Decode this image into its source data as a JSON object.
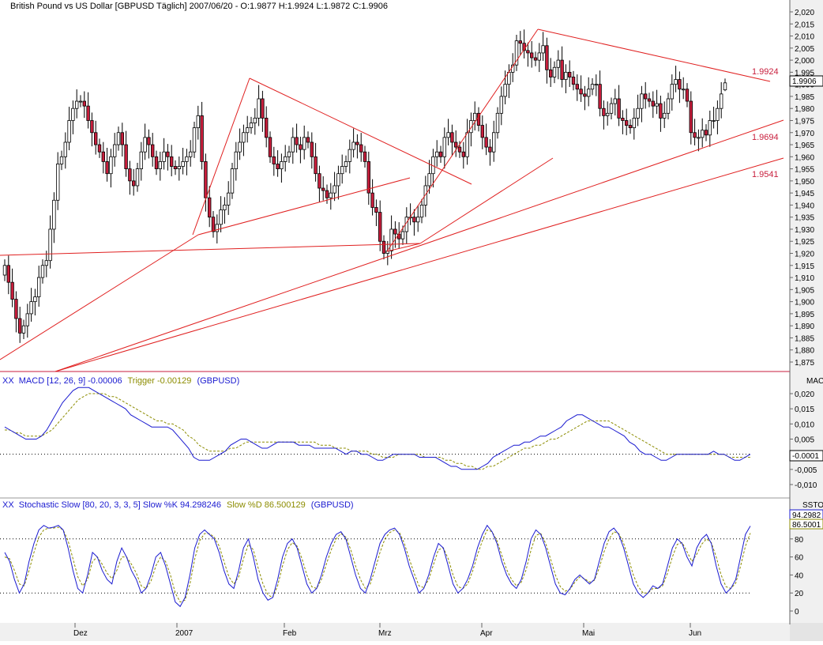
{
  "colors": {
    "background": "#ffffff",
    "axis_bg": "#f0f0f0",
    "bull_candle": "#ffffff",
    "bear_candle": "#c81e3c",
    "candle_outline": "#000000",
    "trendline": "#e02020",
    "macd": "#1a1ad0",
    "trigger": "#8c8c00",
    "stoch_k": "#1a1ad0",
    "stoch_d": "#8c8c00",
    "highlight": "#e8e8e8"
  },
  "panels": {
    "price": {
      "title": "British Pound vs US Dollar [GBPUSD  Täglich] 2007/06/20 - O:1.9877 H:1.9924 L:1.9872 C:1.9906",
      "last_price": "1.9906",
      "ticks": [
        "2,020",
        "2,015",
        "2,010",
        "2,005",
        "2,000",
        "1,995",
        "1,990",
        "1,985",
        "1,980",
        "1,975",
        "1,970",
        "1,965",
        "1,960",
        "1,955",
        "1,950",
        "1,945",
        "1,940",
        "1,935",
        "1,930",
        "1,925",
        "1,920",
        "1,915",
        "1,910",
        "1,905",
        "1,900",
        "1,895",
        "1,890",
        "1,885",
        "1,880",
        "1,875"
      ],
      "annotations": [
        "1.9924",
        "1.9694",
        "1.9541"
      ]
    },
    "macd": {
      "icon": "XX",
      "title_prefix": "MACD [12, 26, 9] -0.00006",
      "title_trigger": "Trigger -0.00129",
      "title_suffix": "(GBPUSD)",
      "corner_label": "MAC",
      "last_value": "-0.0001",
      "ticks": [
        "0,020",
        "0,015",
        "0,010",
        "0,005",
        "0",
        "-0,005",
        "-0,010"
      ]
    },
    "stochastic": {
      "icon": "XX",
      "title_prefix": "Stochastic Slow [80, 20, 3, 3, 5] Slow %K 94.298246",
      "title_slowd": "Slow %D 86.500129",
      "title_suffix": "(GBPUSD)",
      "corner_label": "SSTO",
      "value_k": "94.2982",
      "value_d": "86.5001",
      "ticks": [
        "100",
        "80",
        "60",
        "40",
        "20",
        "0"
      ]
    }
  },
  "x_axis": {
    "labels": [
      "Dez",
      "2007",
      "Feb",
      "Mrz",
      "Apr",
      "Mai",
      "Jun"
    ]
  },
  "chart_data": [
    {
      "type": "candlestick",
      "title": "British Pound vs US Dollar [GBPUSD  Täglich]",
      "ylim": [
        1.872,
        2.023
      ],
      "last_bar": {
        "date": "2007/06/20",
        "open": 1.9877,
        "high": 1.9924,
        "low": 1.9872,
        "close": 1.9906
      },
      "close": [
        1.915,
        1.908,
        1.901,
        1.893,
        1.887,
        1.89,
        1.895,
        1.9,
        1.902,
        1.91,
        1.915,
        1.917,
        1.93,
        1.942,
        1.957,
        1.96,
        1.966,
        1.975,
        1.98,
        1.983,
        1.983,
        1.981,
        1.975,
        1.97,
        1.965,
        1.962,
        1.958,
        1.953,
        1.96,
        1.965,
        1.97,
        1.965,
        1.955,
        1.95,
        1.948,
        1.955,
        1.962,
        1.968,
        1.965,
        1.96,
        1.955,
        1.958,
        1.962,
        1.96,
        1.956,
        1.955,
        1.956,
        1.958,
        1.96,
        1.962,
        1.972,
        1.977,
        1.958,
        1.943,
        1.935,
        1.929,
        1.932,
        1.938,
        1.94,
        1.945,
        1.955,
        1.962,
        1.966,
        1.97,
        1.972,
        1.974,
        1.976,
        1.984,
        1.976,
        1.968,
        1.96,
        1.957,
        1.955,
        1.958,
        1.96,
        1.962,
        1.968,
        1.965,
        1.963,
        1.968,
        1.966,
        1.96,
        1.953,
        1.947,
        1.946,
        1.943,
        1.945,
        1.948,
        1.953,
        1.956,
        1.958,
        1.963,
        1.966,
        1.965,
        1.962,
        1.958,
        1.945,
        1.939,
        1.937,
        1.925,
        1.92,
        1.921,
        1.93,
        1.928,
        1.926,
        1.929,
        1.935,
        1.935,
        1.933,
        1.935,
        1.94,
        1.948,
        1.953,
        1.96,
        1.962,
        1.96,
        1.968,
        1.97,
        1.966,
        1.964,
        1.962,
        1.96,
        1.97,
        1.975,
        1.978,
        1.973,
        1.968,
        1.964,
        1.962,
        1.97,
        1.978,
        1.985,
        1.99,
        1.995,
        1.998,
        2.008,
        2.007,
        2.004,
        2.003,
        2.001,
        2.0,
        2.003,
        2.006,
        1.996,
        1.993,
        1.997,
        2.0,
        1.992,
        1.995,
        1.993,
        1.99,
        1.988,
        1.986,
        1.985,
        1.988,
        1.99,
        1.99,
        1.98,
        1.977,
        1.978,
        1.982,
        1.984,
        1.976,
        1.975,
        1.973,
        1.972,
        1.976,
        1.98,
        1.986,
        1.984,
        1.983,
        1.981,
        1.982,
        1.976,
        1.978,
        1.984,
        1.99,
        1.992,
        1.988,
        1.988,
        1.983,
        1.97,
        1.968,
        1.968,
        1.971,
        1.969,
        1.975,
        1.975,
        1.98,
        1.986,
        1.9906
      ]
    },
    {
      "type": "line",
      "title": "MACD [12, 26, 9]",
      "ylim": [
        -0.013,
        0.024
      ],
      "series": [
        {
          "name": "MACD",
          "values": [
            0.009,
            0.008,
            0.007,
            0.006,
            0.005,
            0.005,
            0.005,
            0.006,
            0.008,
            0.011,
            0.014,
            0.017,
            0.019,
            0.021,
            0.022,
            0.022,
            0.022,
            0.021,
            0.02,
            0.019,
            0.018,
            0.017,
            0.016,
            0.015,
            0.013,
            0.012,
            0.011,
            0.01,
            0.009,
            0.009,
            0.009,
            0.009,
            0.008,
            0.006,
            0.004,
            0.002,
            -0.001,
            -0.002,
            -0.002,
            -0.002,
            -0.001,
            0.0,
            0.001,
            0.003,
            0.004,
            0.005,
            0.005,
            0.004,
            0.003,
            0.002,
            0.002,
            0.003,
            0.004,
            0.004,
            0.004,
            0.004,
            0.003,
            0.003,
            0.003,
            0.002,
            0.002,
            0.002,
            0.002,
            0.002,
            0.001,
            0.0,
            0.001,
            0.001,
            0.0,
            0.0,
            -0.001,
            -0.002,
            -0.002,
            -0.001,
            0.0,
            0.0,
            0.0,
            0.0,
            0.0,
            -0.001,
            -0.001,
            -0.001,
            -0.001,
            -0.002,
            -0.003,
            -0.004,
            -0.004,
            -0.005,
            -0.005,
            -0.005,
            -0.005,
            -0.004,
            -0.003,
            -0.001,
            0.0,
            0.001,
            0.002,
            0.003,
            0.003,
            0.004,
            0.004,
            0.005,
            0.006,
            0.006,
            0.007,
            0.008,
            0.009,
            0.011,
            0.012,
            0.013,
            0.013,
            0.012,
            0.011,
            0.01,
            0.009,
            0.009,
            0.008,
            0.007,
            0.006,
            0.004,
            0.003,
            0.001,
            0.0,
            0.0,
            -0.001,
            -0.002,
            -0.002,
            -0.001,
            0.0,
            0.0,
            0.0,
            0.0,
            0.0,
            0.0,
            0.0,
            0.001,
            0.0,
            0.0,
            -0.001,
            -0.002,
            -0.002,
            -0.001,
            0.0
          ]
        },
        {
          "name": "Trigger",
          "values": [
            0.008,
            0.008,
            0.007,
            0.007,
            0.006,
            0.006,
            0.006,
            0.006,
            0.007,
            0.008,
            0.01,
            0.012,
            0.014,
            0.016,
            0.018,
            0.019,
            0.02,
            0.02,
            0.02,
            0.02,
            0.019,
            0.019,
            0.018,
            0.017,
            0.016,
            0.015,
            0.014,
            0.013,
            0.012,
            0.011,
            0.011,
            0.01,
            0.01,
            0.009,
            0.008,
            0.006,
            0.005,
            0.003,
            0.002,
            0.001,
            0.001,
            0.001,
            0.001,
            0.002,
            0.002,
            0.003,
            0.004,
            0.004,
            0.004,
            0.004,
            0.004,
            0.004,
            0.004,
            0.004,
            0.004,
            0.004,
            0.004,
            0.004,
            0.004,
            0.004,
            0.003,
            0.003,
            0.003,
            0.002,
            0.002,
            0.002,
            0.001,
            0.001,
            0.001,
            0.001,
            0.0,
            0.0,
            -0.001,
            -0.001,
            -0.001,
            0.0,
            0.0,
            0.0,
            0.0,
            0.0,
            -0.001,
            -0.001,
            -0.001,
            -0.001,
            -0.002,
            -0.002,
            -0.003,
            -0.003,
            -0.004,
            -0.004,
            -0.005,
            -0.005,
            -0.004,
            -0.004,
            -0.003,
            -0.002,
            -0.001,
            0.0,
            0.001,
            0.002,
            0.002,
            0.003,
            0.003,
            0.004,
            0.005,
            0.005,
            0.006,
            0.007,
            0.008,
            0.009,
            0.01,
            0.011,
            0.011,
            0.011,
            0.011,
            0.011,
            0.01,
            0.009,
            0.008,
            0.007,
            0.006,
            0.005,
            0.004,
            0.003,
            0.002,
            0.001,
            0.0,
            0.0,
            0.0,
            0.0,
            0.0,
            0.0,
            0.0,
            0.0,
            0.0,
            0.0,
            0.0,
            0.0,
            -0.001,
            -0.001,
            -0.001,
            -0.001,
            -0.001
          ]
        }
      ],
      "reference_lines": [
        0
      ]
    },
    {
      "type": "line",
      "title": "Stochastic Slow [80, 20, 3, 3, 5]",
      "ylim": [
        -8,
        110
      ],
      "series": [
        {
          "name": "Slow %K",
          "values": [
            65,
            55,
            35,
            20,
            30,
            55,
            75,
            90,
            95,
            92,
            93,
            95,
            90,
            70,
            45,
            25,
            20,
            40,
            65,
            60,
            45,
            35,
            30,
            55,
            70,
            60,
            45,
            35,
            20,
            25,
            40,
            60,
            65,
            50,
            30,
            10,
            5,
            15,
            40,
            70,
            85,
            90,
            85,
            80,
            65,
            45,
            30,
            25,
            45,
            70,
            80,
            60,
            35,
            20,
            12,
            15,
            35,
            60,
            75,
            80,
            70,
            50,
            30,
            20,
            25,
            40,
            60,
            75,
            85,
            88,
            80,
            60,
            40,
            25,
            20,
            35,
            55,
            75,
            85,
            90,
            92,
            85,
            70,
            50,
            35,
            20,
            25,
            40,
            60,
            75,
            70,
            50,
            30,
            20,
            25,
            35,
            50,
            70,
            85,
            95,
            88,
            75,
            55,
            40,
            30,
            25,
            35,
            55,
            80,
            90,
            85,
            70,
            50,
            30,
            20,
            18,
            25,
            35,
            40,
            35,
            30,
            35,
            55,
            75,
            88,
            92,
            85,
            70,
            50,
            30,
            20,
            15,
            20,
            28,
            25,
            30,
            50,
            70,
            80,
            75,
            60,
            50,
            70,
            80,
            85,
            75,
            50,
            30,
            20,
            25,
            35,
            60,
            85,
            94.3
          ]
        },
        {
          "name": "Slow %D",
          "values": [
            60,
            58,
            45,
            30,
            28,
            45,
            65,
            82,
            90,
            92,
            92,
            93,
            90,
            78,
            58,
            38,
            28,
            35,
            55,
            60,
            52,
            42,
            36,
            45,
            60,
            60,
            52,
            42,
            28,
            25,
            33,
            50,
            60,
            55,
            40,
            20,
            10,
            12,
            30,
            58,
            78,
            86,
            86,
            82,
            72,
            55,
            38,
            30,
            38,
            58,
            74,
            68,
            48,
            30,
            18,
            15,
            28,
            50,
            68,
            76,
            72,
            58,
            40,
            27,
            25,
            35,
            52,
            68,
            80,
            86,
            82,
            68,
            50,
            35,
            25,
            30,
            46,
            65,
            80,
            87,
            90,
            87,
            75,
            58,
            42,
            28,
            26,
            35,
            52,
            68,
            70,
            58,
            40,
            27,
            25,
            30,
            44,
            62,
            78,
            90,
            88,
            78,
            62,
            46,
            35,
            28,
            32,
            46,
            68,
            84,
            86,
            75,
            58,
            40,
            27,
            22,
            24,
            32,
            38,
            36,
            32,
            34,
            48,
            66,
            80,
            88,
            86,
            75,
            58,
            40,
            27,
            20,
            20,
            25,
            25,
            28,
            42,
            60,
            74,
            76,
            66,
            55,
            63,
            74,
            80,
            76,
            60,
            40,
            27,
            25,
            31,
            50,
            72,
            86.5
          ]
        }
      ],
      "reference_lines": [
        20,
        80
      ]
    }
  ]
}
